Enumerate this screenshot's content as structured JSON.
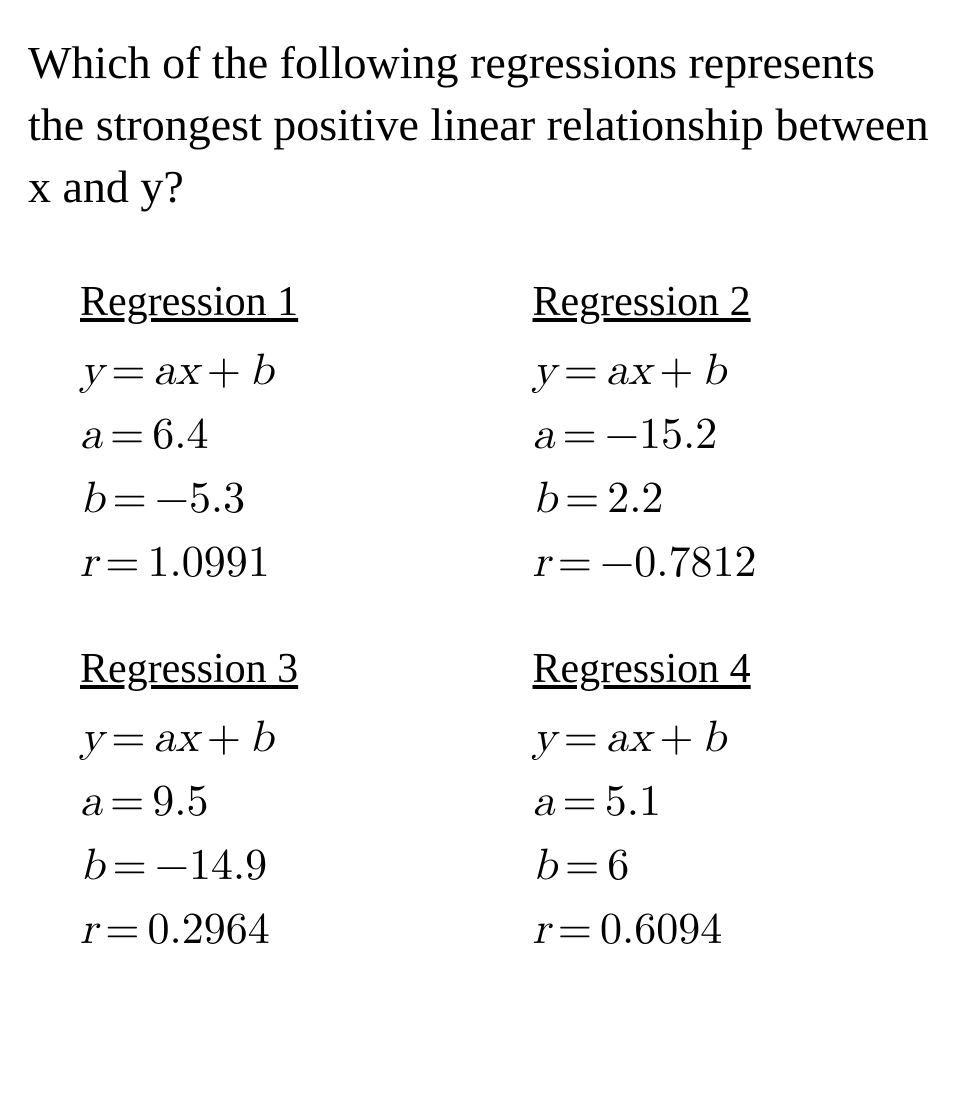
{
  "question": "Which of the following regressions represents the strongest positive linear relationship between x and y?",
  "regressions": [
    {
      "title": "Regression 1",
      "equation_html": "<span>y</span><span class=\"op\">=</span><span>ax</span><span class=\"op\">+</span><span>b</span>",
      "a_html": "<span>a</span><span class=\"op\">=</span><span class=\"num\">6.4</span>",
      "b_html": "<span>b</span><span class=\"op\">=</span><span class=\"minus\">−</span><span class=\"num\">5.3</span>",
      "r_html": "<span>r</span><span class=\"op\">=</span><span class=\"num\">1.0991</span>"
    },
    {
      "title": "Regression 2",
      "equation_html": "<span>y</span><span class=\"op\">=</span><span>ax</span><span class=\"op\">+</span><span>b</span>",
      "a_html": "<span>a</span><span class=\"op\">=</span><span class=\"minus\">−</span><span class=\"num\">15.2</span>",
      "b_html": "<span>b</span><span class=\"op\">=</span><span class=\"num\">2.2</span>",
      "r_html": "<span>r</span><span class=\"op\">=</span><span class=\"minus\">−</span><span class=\"num\">0.7812</span>"
    },
    {
      "title": "Regression 3",
      "equation_html": "<span>y</span><span class=\"op\">=</span><span>ax</span><span class=\"op\">+</span><span>b</span>",
      "a_html": "<span>a</span><span class=\"op\">=</span><span class=\"num\">9.5</span>",
      "b_html": "<span>b</span><span class=\"op\">=</span><span class=\"minus\">−</span><span class=\"num\">14.9</span>",
      "r_html": "<span>r</span><span class=\"op\">=</span><span class=\"num\">0.2964</span>"
    },
    {
      "title": "Regression 4",
      "equation_html": "<span>y</span><span class=\"op\">=</span><span>ax</span><span class=\"op\">+</span><span>b</span>",
      "a_html": "<span>a</span><span class=\"op\">=</span><span class=\"num\">5.1</span>",
      "b_html": "<span>b</span><span class=\"op\">=</span><span class=\"num\">6</span>",
      "r_html": "<span>r</span><span class=\"op\">=</span><span class=\"num\">0.6094</span>"
    }
  ]
}
